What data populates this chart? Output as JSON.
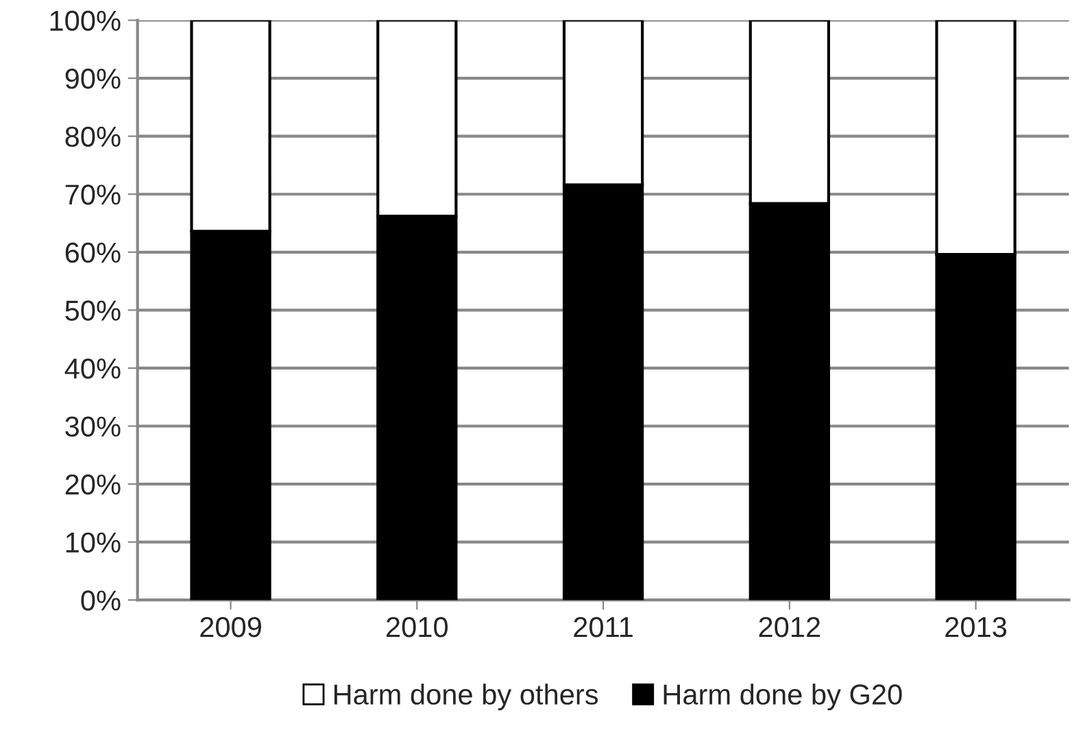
{
  "chart_data": {
    "type": "bar",
    "stacked": true,
    "categories": [
      "2009",
      "2010",
      "2011",
      "2012",
      "2013"
    ],
    "series": [
      {
        "name": "Harm done by G20",
        "color": "#000000",
        "values": [
          63.6,
          66.2,
          71.6,
          68.4,
          59.6
        ]
      },
      {
        "name": "Harm done by others",
        "color": "#ffffff",
        "values": [
          36.4,
          33.8,
          28.4,
          31.6,
          40.4
        ]
      }
    ],
    "ylim": [
      0,
      100
    ],
    "yticks": [
      {
        "value": 0,
        "label": "0%"
      },
      {
        "value": 10,
        "label": "10%"
      },
      {
        "value": 20,
        "label": "20%"
      },
      {
        "value": 30,
        "label": "30%"
      },
      {
        "value": 40,
        "label": "40%"
      },
      {
        "value": 50,
        "label": "50%"
      },
      {
        "value": 60,
        "label": "60%"
      },
      {
        "value": 70,
        "label": "70%"
      },
      {
        "value": 80,
        "label": "80%"
      },
      {
        "value": 90,
        "label": "90%"
      },
      {
        "value": 100,
        "label": "100%"
      }
    ],
    "grid": "y",
    "legend": "bottom"
  }
}
